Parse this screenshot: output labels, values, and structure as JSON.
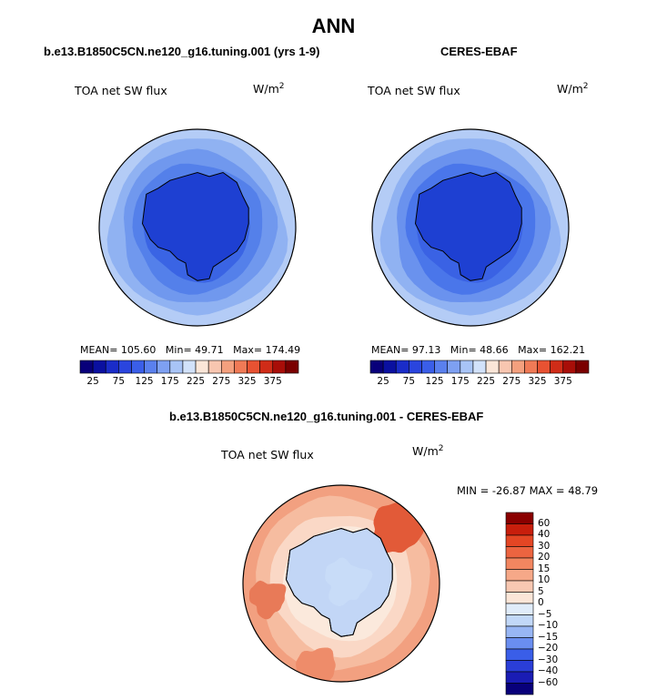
{
  "figure": {
    "title": "ANN",
    "unit_base": "W/m",
    "unit_exp": "2",
    "field_label": "TOA net SW flux"
  },
  "panel_model": {
    "title": "b.e13.B1850C5CN.ne120_g16.tuning.001 (yrs 1-9)",
    "mean_label": "MEAN=",
    "mean": "105.60",
    "min_label": "Min=",
    "min": "49.71",
    "max_label": "Max=",
    "max": "174.49"
  },
  "panel_obs": {
    "title": "CERES-EBAF",
    "mean_label": "MEAN=",
    "mean": "97.13",
    "min_label": "Min=",
    "min": "48.66",
    "max_label": "Max=",
    "max": "162.21"
  },
  "panel_diff": {
    "title": "b.e13.B1850C5CN.ne120_g16.tuning.001 - CERES-EBAF",
    "minmax_text": "MIN = -26.87 MAX =  48.79"
  },
  "colorbar_abs": {
    "colors": [
      "#08007a",
      "#0a10a0",
      "#1a2cc8",
      "#2a45de",
      "#3a5ee8",
      "#5a80ee",
      "#7ea0f2",
      "#a8c4f6",
      "#d2e2fa",
      "#fbe6d8",
      "#f8c6b0",
      "#f4a07e",
      "#f07a56",
      "#e85232",
      "#d02c18",
      "#a80e08",
      "#7a0000"
    ],
    "tick_labels": [
      "25",
      "75",
      "125",
      "175",
      "225",
      "275",
      "325",
      "375"
    ]
  },
  "colorbar_diff": {
    "colors": [
      "#08007a",
      "#1a1cb4",
      "#2a3ed8",
      "#3a5ee8",
      "#6a8ef0",
      "#98b6f4",
      "#c2d8f8",
      "#e0ecfa",
      "#fbe6d8",
      "#f8c8b2",
      "#f6a888",
      "#f28660",
      "#ec6440",
      "#e44624",
      "#c81e0c",
      "#8a0000"
    ],
    "tick_labels": [
      "60",
      "40",
      "30",
      "20",
      "15",
      "10",
      "5",
      "0",
      "−5",
      "−10",
      "−15",
      "−20",
      "−30",
      "−40",
      "−60"
    ]
  },
  "maps": {
    "model_palette": [
      "#b4ccf6",
      "#90b2f2",
      "#7098ee",
      "#5480ea",
      "#3a64e4",
      "#1e40d2"
    ],
    "obs_palette": [
      "#b4ccf6",
      "#90b2f2",
      "#6a92ee",
      "#4a76ea",
      "#3a62e4",
      "#1e40d2"
    ],
    "diff_palette": [
      "#f2a080",
      "#f6bca0",
      "#fad8c6",
      "#fbe9dc",
      "#dfe9f8",
      "#c2d6f6"
    ]
  }
}
